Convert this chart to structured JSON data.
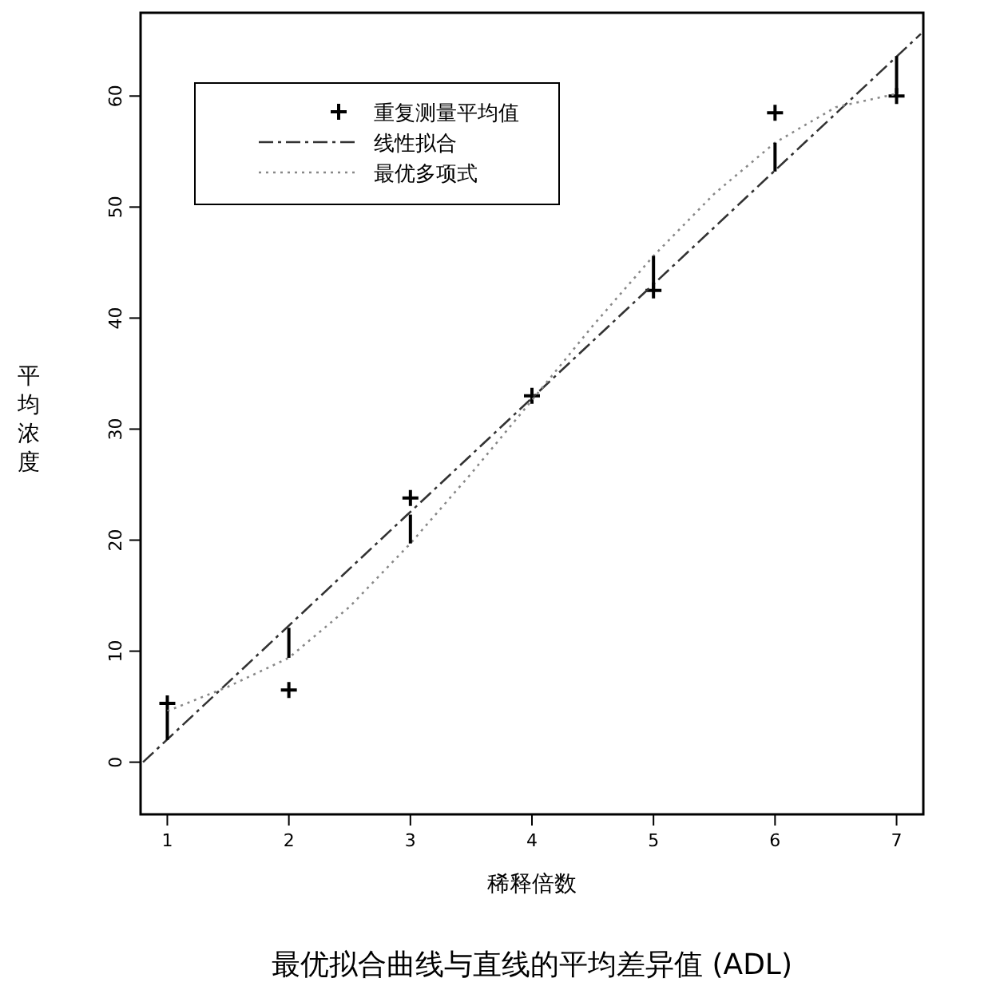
{
  "chart_data": {
    "type": "line",
    "title": "最优拟合曲线与直线的平均差异值 (ADL)",
    "xlabel": "稀释倍数",
    "ylabel": "平均浓度",
    "xlim": [
      0.78,
      7.22
    ],
    "ylim": [
      -4.7,
      67.5
    ],
    "xticks": [
      1,
      2,
      3,
      4,
      5,
      6,
      7
    ],
    "yticks": [
      0,
      10,
      20,
      30,
      40,
      50,
      60
    ],
    "grid": false,
    "legend": "top left",
    "series": [
      {
        "name": "重复测量平均值",
        "type": "scatter",
        "marker": "cross",
        "color": "#000000",
        "x": [
          1,
          2,
          3,
          4,
          5,
          6,
          7
        ],
        "values": [
          5.3,
          6.5,
          23.8,
          33,
          42.5,
          58.5,
          60
        ]
      },
      {
        "name": "线性拟合",
        "line_style": "dashed",
        "color": "#333333",
        "x": [
          0.8,
          7.2
        ],
        "values": [
          0,
          65.6
        ]
      },
      {
        "name": "最优多项式",
        "line_style": "dotted",
        "color": "#888888",
        "x": [
          1,
          1.5,
          2,
          2.5,
          3,
          3.5,
          4,
          4.5,
          5,
          5.5,
          6,
          6.5,
          7
        ],
        "values": [
          4.6,
          6.8,
          9.4,
          14,
          19.7,
          26,
          32.6,
          39.3,
          45.6,
          51.2,
          55.8,
          59,
          60.2
        ]
      },
      {
        "type": "bar",
        "color": "#000000",
        "x": [
          1,
          2,
          3,
          4,
          5,
          6,
          7
        ],
        "base": [
          2,
          9.4,
          19.7,
          null,
          42.5,
          53.2,
          60.2
        ],
        "values": [
          2.6,
          2.7,
          2.6,
          null,
          3.1,
          2.6,
          3.4
        ]
      }
    ]
  }
}
